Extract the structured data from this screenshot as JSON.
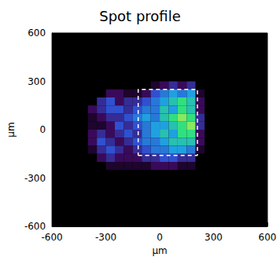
{
  "chart_data": {
    "type": "heatmap",
    "title": "Spot profile",
    "x_label": "µm",
    "y_label": "µm",
    "xlim": [
      -600,
      600
    ],
    "ylim": [
      -600,
      600
    ],
    "xticks": [
      -600,
      -300,
      0,
      300,
      600
    ],
    "yticks": [
      -600,
      -300,
      0,
      300,
      600
    ],
    "grid": false,
    "zlim": [
      0,
      1
    ],
    "cells": {
      "x": [
        -375,
        -325,
        -275,
        -225,
        -175,
        -125,
        -75,
        -25,
        25,
        75,
        125,
        175,
        225
      ],
      "y": [
        275,
        225,
        175,
        125,
        75,
        25,
        -25,
        -75,
        -125,
        -175,
        -225
      ],
      "values": [
        [
          0,
          0,
          0,
          0,
          0,
          0,
          0,
          0.1,
          0.2,
          0.3,
          0.2,
          0.3,
          0
        ],
        [
          0,
          0,
          0.2,
          0.2,
          0.1,
          0.1,
          0.2,
          0.4,
          0.5,
          0.6,
          0.5,
          0.6,
          0.1
        ],
        [
          0,
          0.3,
          0.4,
          0.2,
          0.3,
          0.3,
          0.4,
          0.5,
          0.6,
          0.7,
          0.8,
          0.7,
          0.2
        ],
        [
          0.2,
          0.3,
          0.4,
          0.4,
          0.3,
          0.4,
          0.5,
          0.5,
          0.7,
          0.6,
          0.8,
          0.7,
          0.2
        ],
        [
          0.1,
          0.2,
          0.3,
          0.3,
          0.4,
          0.5,
          0.6,
          0.5,
          0.7,
          0.8,
          0.9,
          0.8,
          0.3
        ],
        [
          0.1,
          0.1,
          0.2,
          0.4,
          0.3,
          0.4,
          0.5,
          0.6,
          0.6,
          0.7,
          0.8,
          0.9,
          0.3
        ],
        [
          0.2,
          0.3,
          0.2,
          0.3,
          0.4,
          0.3,
          0.5,
          0.6,
          0.7,
          0.6,
          0.8,
          0.8,
          0.2
        ],
        [
          0.2,
          0.4,
          0.3,
          0.2,
          0.3,
          0.4,
          0.5,
          0.5,
          0.6,
          0.7,
          0.7,
          0.7,
          0.2
        ],
        [
          0.1,
          0.3,
          0.4,
          0.3,
          0.2,
          0.3,
          0.4,
          0.5,
          0.5,
          0.6,
          0.6,
          0.5,
          0.1
        ],
        [
          0,
          0.2,
          0.3,
          0.2,
          0.2,
          0.2,
          0.3,
          0.3,
          0.4,
          0.4,
          0.3,
          0.3,
          0
        ],
        [
          0,
          0,
          0.1,
          0.1,
          0.1,
          0.1,
          0.1,
          0.2,
          0.2,
          0.2,
          0.1,
          0.1,
          0
        ]
      ]
    },
    "box": {
      "x": [
        -120,
        210
      ],
      "y": [
        -160,
        250
      ],
      "color": "#ffffff",
      "line_style": "dashed"
    }
  }
}
